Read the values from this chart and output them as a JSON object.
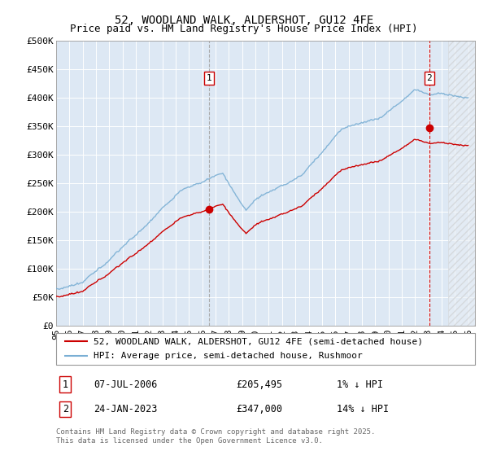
{
  "title": "52, WOODLAND WALK, ALDERSHOT, GU12 4FE",
  "subtitle": "Price paid vs. HM Land Registry's House Price Index (HPI)",
  "ylabel_ticks": [
    "£0",
    "£50K",
    "£100K",
    "£150K",
    "£200K",
    "£250K",
    "£300K",
    "£350K",
    "£400K",
    "£450K",
    "£500K"
  ],
  "ytick_values": [
    0,
    50000,
    100000,
    150000,
    200000,
    250000,
    300000,
    350000,
    400000,
    450000,
    500000
  ],
  "ylim": [
    0,
    500000
  ],
  "xlim_start": 1995.0,
  "xlim_end": 2026.5,
  "hpi_color": "#7aafd4",
  "price_color": "#cc0000",
  "bg_color": "#dde8f4",
  "marker1_x": 2006.52,
  "marker1_y": 205495,
  "marker2_x": 2023.07,
  "marker2_y": 347000,
  "vline1_color": "#aaaaaa",
  "vline1_style": "--",
  "vline2_color": "#cc0000",
  "vline2_style": "--",
  "hatch_start": 2024.5,
  "legend_line1": "52, WOODLAND WALK, ALDERSHOT, GU12 4FE (semi-detached house)",
  "legend_line2": "HPI: Average price, semi-detached house, Rushmoor",
  "note1_label": "1",
  "note1_date": "07-JUL-2006",
  "note1_price": "£205,495",
  "note1_diff": "1% ↓ HPI",
  "note2_label": "2",
  "note2_date": "24-JAN-2023",
  "note2_price": "£347,000",
  "note2_diff": "14% ↓ HPI",
  "footer": "Contains HM Land Registry data © Crown copyright and database right 2025.\nThis data is licensed under the Open Government Licence v3.0.",
  "title_fontsize": 10,
  "subtitle_fontsize": 9,
  "tick_fontsize": 8,
  "legend_fontsize": 8,
  "note_fontsize": 8.5,
  "footer_fontsize": 6.5
}
